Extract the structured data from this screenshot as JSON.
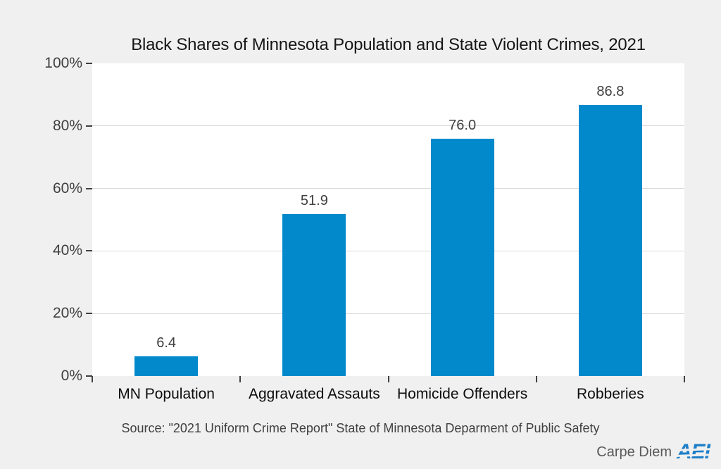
{
  "chart_data": {
    "type": "bar",
    "title": "Black Shares of Minnesota Population and State Violent Crimes, 2021",
    "categories": [
      "MN Population",
      "Aggravated Assauts",
      "Homicide Offenders",
      "Robberies"
    ],
    "values": [
      6.4,
      51.9,
      76.0,
      86.8
    ],
    "value_labels": [
      "6.4",
      "51.9",
      "76.0",
      "86.8"
    ],
    "ylabel": "",
    "xlabel": "",
    "ylim": [
      0,
      100
    ],
    "yticks": [
      0,
      20,
      40,
      60,
      80,
      100
    ],
    "ytick_labels": [
      "0%",
      "20%",
      "40%",
      "60%",
      "80%",
      "100%"
    ],
    "grid": "horizontal",
    "legend": "none",
    "bar_color": "#0189cb",
    "chart_background": "#f0f0f0",
    "plot_background": "#ffffff",
    "gridline_color": "#d9d9d9",
    "tick_color": "#404040"
  },
  "footer": {
    "source": "Source: \"2021 Uniform Crime Report\" State of Minnesota Deparment of Public Safety",
    "branding": "Carpe Diem",
    "logo": "AEI",
    "logo_color": "#1e7ec8"
  }
}
